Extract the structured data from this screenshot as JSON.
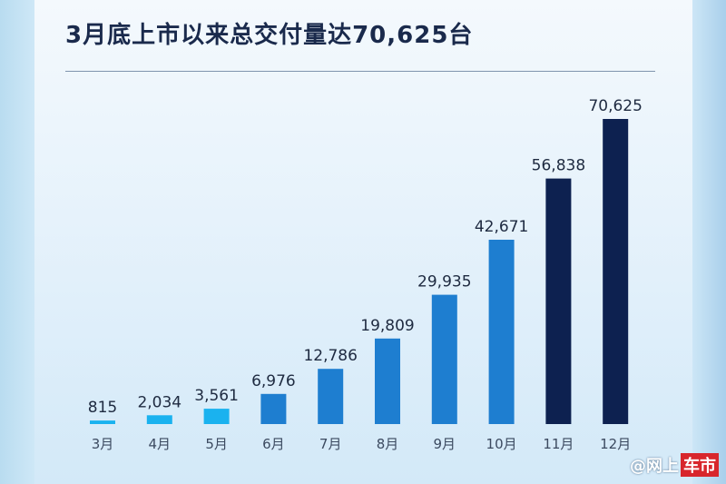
{
  "chart_data": {
    "type": "bar",
    "title": "3月底上市以来总交付量达70,625台",
    "xlabel": "",
    "ylabel": "",
    "categories": [
      "3月",
      "4月",
      "5月",
      "6月",
      "7月",
      "8月",
      "9月",
      "10月",
      "11月",
      "12月"
    ],
    "values": [
      815,
      2034,
      3561,
      6976,
      12786,
      19809,
      29935,
      42671,
      56838,
      70625
    ],
    "value_labels": [
      "815",
      "2,034",
      "3,561",
      "6,976",
      "12,786",
      "19,809",
      "29,935",
      "42,671",
      "56,838",
      "70,625"
    ],
    "ylim": [
      0,
      70625
    ],
    "grid": false,
    "legend": "none",
    "bar_colors": [
      "#1ab2ef",
      "#1ab2ef",
      "#1ab2ef",
      "#1e7ed0",
      "#1e7ed0",
      "#1e7ed0",
      "#1e7ed0",
      "#1e7ed0",
      "#0d2150",
      "#0d2150"
    ]
  },
  "watermark": {
    "prefix": "@网上",
    "brand": "车市"
  },
  "colors": {
    "title": "#1a2a4c",
    "light_blue": "#1ab2ef",
    "mid_blue": "#1e7ed0",
    "navy": "#0d2150"
  }
}
